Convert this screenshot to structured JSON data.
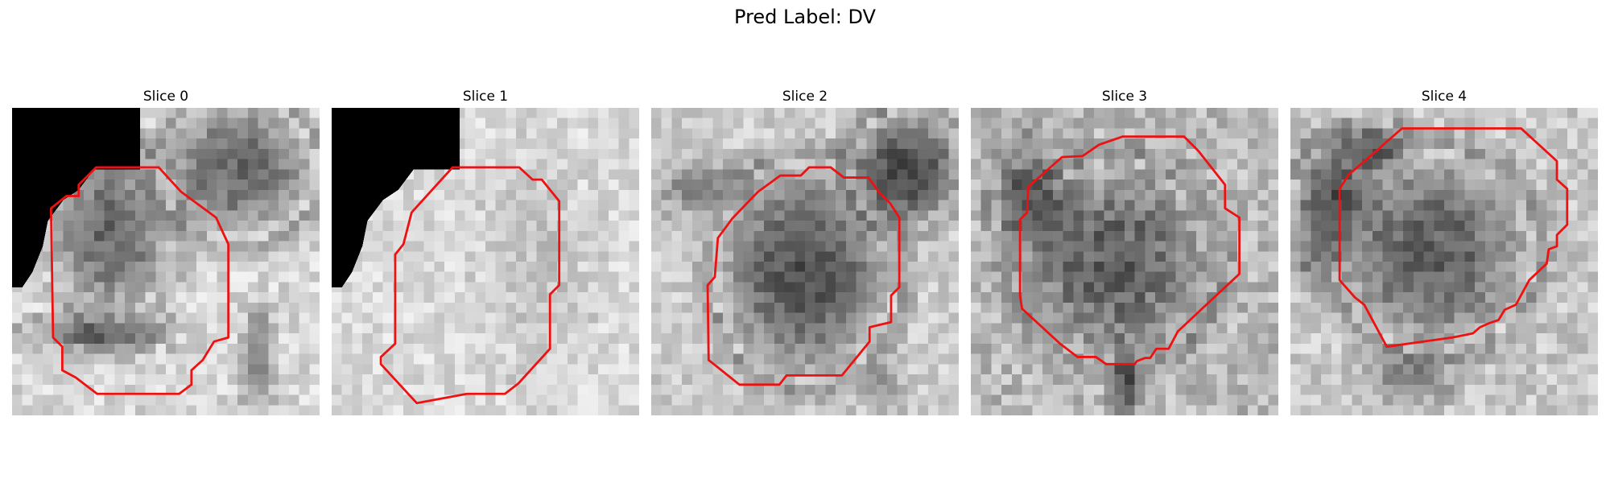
{
  "figure": {
    "title": "Pred Label: DV"
  },
  "panels": [
    {
      "title": "Slice 0",
      "contour_color": "#ee1111",
      "tone": "light background with darker blob at center-left and top-right; black corner at top-left"
    },
    {
      "title": "Slice 1",
      "contour_color": "#ee1111",
      "tone": "mostly light noisy texture; black corner at top-left"
    },
    {
      "title": "Slice 2",
      "contour_color": "#ee1111",
      "tone": "dark blob in center, light surroundings with dark diagonal band"
    },
    {
      "title": "Slice 3",
      "contour_color": "#ee1111",
      "tone": "mid-gray noisy texture, dark blob in center"
    },
    {
      "title": "Slice 4",
      "contour_color": "#ee1111",
      "tone": "dark blob in center, lighter edges"
    }
  ]
}
